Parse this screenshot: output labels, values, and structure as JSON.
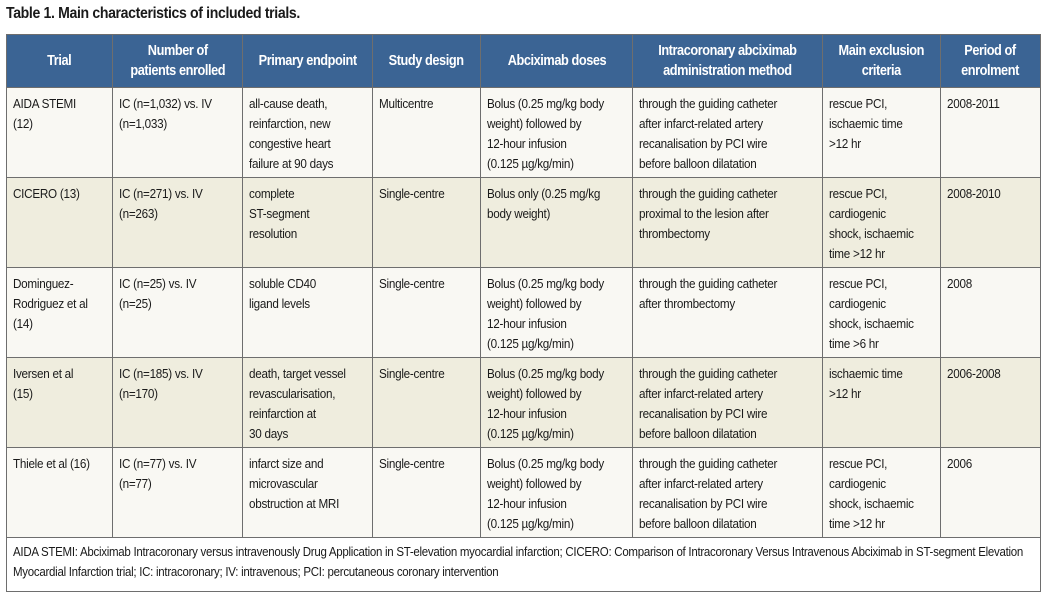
{
  "title": "Table 1. Main characteristics of included trials.",
  "colors": {
    "header_bg": "#3b6494",
    "row_odd": "#f9f8f3",
    "row_even": "#efedde"
  },
  "headers": [
    "Trial",
    "Number of\npatients enrolled",
    "Primary endpoint",
    "Study design",
    "Abciximab doses",
    "Intracoronary abciximab\nadministration method",
    "Main exclusion\ncriteria",
    "Period of\nenrolment"
  ],
  "rows": [
    [
      "AIDA STEMI\n(12)",
      "IC (n=1,032) vs. IV\n(n=1,033)",
      "all-cause death,\nreinfarction, new\ncongestive heart\nfailure at 90 days",
      "Multicentre",
      "Bolus (0.25 mg/kg body\nweight) followed by\n12-hour infusion\n(0.125 µg/kg/min)",
      "through the guiding catheter\nafter infarct-related artery\nrecanalisation by PCI wire\nbefore balloon dilatation",
      "rescue PCI,\nischaemic time\n>12 hr",
      "2008-2011"
    ],
    [
      "CICERO (13)",
      "IC (n=271) vs. IV\n(n=263)",
      "complete\nST-segment\nresolution",
      "Single-centre",
      "Bolus only (0.25 mg/kg\nbody weight)",
      "through the guiding catheter\nproximal to the lesion after\nthrombectomy",
      "rescue PCI,\ncardiogenic\nshock, ischaemic\ntime >12 hr",
      "2008-2010"
    ],
    [
      "Dominguez-\nRodriguez et al\n(14)",
      "IC (n=25) vs. IV\n(n=25)",
      "soluble CD40\nligand levels",
      "Single-centre",
      "Bolus (0.25 mg/kg body\nweight) followed by\n12-hour infusion\n(0.125 µg/kg/min)",
      "through the guiding catheter\nafter thrombectomy",
      "rescue PCI,\ncardiogenic\nshock, ischaemic\ntime >6 hr",
      "2008"
    ],
    [
      "Iversen et al\n(15)",
      "IC (n=185) vs. IV\n(n=170)",
      "death, target vessel\nrevascularisation,\nreinfarction at\n30 days",
      "Single-centre",
      "Bolus (0.25 mg/kg body\nweight) followed by\n12-hour infusion\n(0.125 µg/kg/min)",
      "through the guiding catheter\nafter infarct-related artery\nrecanalisation by PCI wire\nbefore balloon dilatation",
      "ischaemic time\n>12 hr",
      "2006-2008"
    ],
    [
      "Thiele et al (16)",
      "IC (n=77) vs. IV\n(n=77)",
      "infarct size and\nmicrovascular\nobstruction at MRI",
      "Single-centre",
      "Bolus (0.25 mg/kg body\nweight) followed by\n12-hour infusion\n(0.125 µg/kg/min)",
      "through the guiding catheter\nafter infarct-related artery\nrecanalisation by PCI wire\nbefore balloon dilatation",
      "rescue PCI,\ncardiogenic\nshock, ischaemic\ntime >12 hr",
      "2006"
    ]
  ],
  "footnote": "AIDA STEMI: Abciximab Intracoronary versus intravenously Drug Application in ST-elevation myocardial infarction; CICERO: Comparison of Intracoronary Versus Intravenous Abciximab in ST-segment Elevation Myocardial Infarction trial; IC: intracoronary; IV: intravenous; PCI: percutaneous coronary intervention"
}
